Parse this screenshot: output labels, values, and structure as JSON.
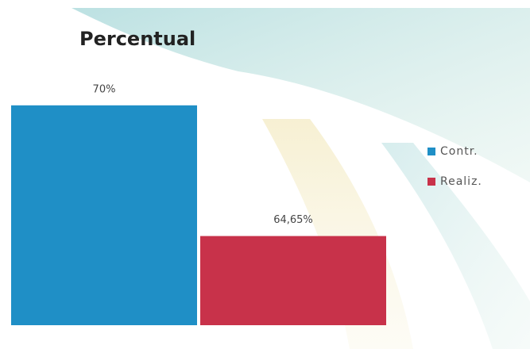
{
  "chart_data": {
    "type": "bar",
    "title": "Percentual",
    "categories": [
      null
    ],
    "series": [
      {
        "name": "Contr.",
        "color": "#1f8fc6",
        "values": [
          70
        ],
        "value_labels": [
          "70%"
        ]
      },
      {
        "name": "Realiz.",
        "color": "#c8324a",
        "values": [
          64.65
        ],
        "value_labels": [
          "64,65%"
        ]
      }
    ],
    "ylim": [
      61,
      71
    ],
    "grid": false,
    "legend": "right"
  }
}
